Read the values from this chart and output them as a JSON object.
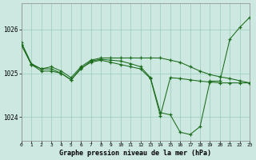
{
  "line1_y": [
    1025.65,
    1025.2,
    1025.1,
    1025.15,
    1025.05,
    1024.9,
    1025.15,
    1025.3,
    1025.35,
    1025.35,
    1025.35,
    1025.35,
    1025.35,
    1025.35,
    1025.35,
    1025.3,
    1025.25,
    1025.15,
    1025.05,
    1024.97,
    1024.92,
    1024.88,
    1024.83,
    1024.78
  ],
  "line2_y": [
    1025.65,
    1025.2,
    1025.05,
    1025.05,
    1025.0,
    1024.85,
    1025.1,
    1025.28,
    1025.32,
    1025.3,
    1025.28,
    1025.22,
    1025.15,
    1024.9,
    1024.1,
    1024.05,
    1023.65,
    1023.6,
    1023.78,
    1024.82,
    1024.82,
    1025.78,
    1026.05,
    1026.28
  ],
  "line3_y": [
    1025.7,
    1025.22,
    1025.1,
    1025.1,
    1025.0,
    1024.85,
    1025.12,
    1025.25,
    1025.3,
    1025.25,
    1025.2,
    1025.15,
    1025.1,
    1024.88,
    1024.03,
    1024.9,
    1024.88,
    1024.85,
    1024.82,
    1024.8,
    1024.78,
    1024.78,
    1024.78,
    1024.78
  ],
  "bg_color": "#cce8e0",
  "line_color": "#1a6b1a",
  "grid_color": "#99ccbb",
  "xlabel": "Graphe pression niveau de la mer (hPa)",
  "ytick_labels": [
    "1024",
    "1025",
    "1026"
  ],
  "ytick_vals": [
    1024.0,
    1025.0,
    1026.0
  ],
  "xtick_labels": [
    "0",
    "1",
    "2",
    "3",
    "4",
    "5",
    "6",
    "7",
    "8",
    "9",
    "10",
    "11",
    "12",
    "13",
    "14",
    "15",
    "16",
    "17",
    "18",
    "19",
    "20",
    "21",
    "22",
    "23"
  ],
  "ylim": [
    1023.45,
    1026.6
  ],
  "xlim": [
    0,
    23
  ]
}
